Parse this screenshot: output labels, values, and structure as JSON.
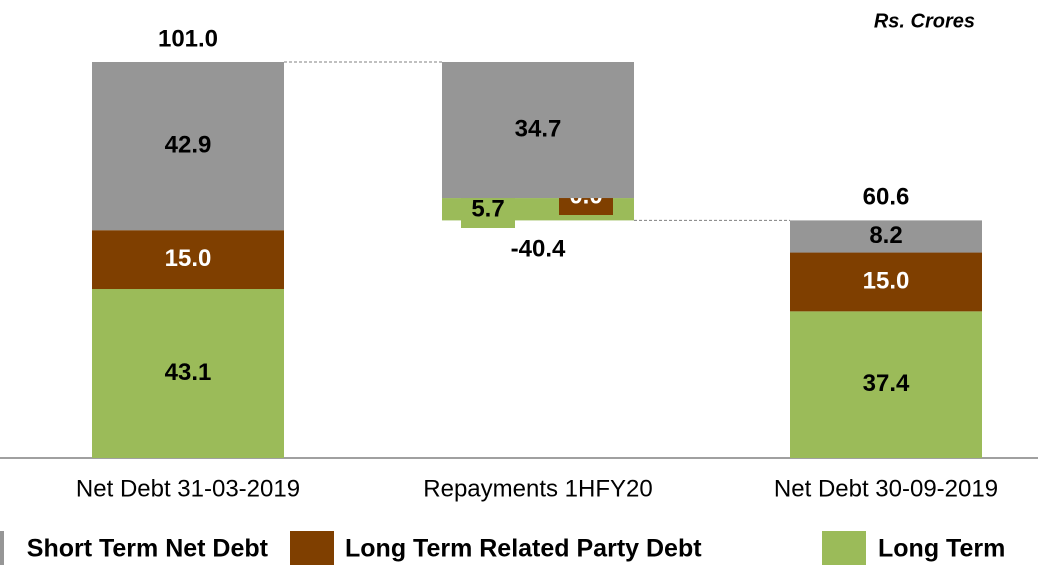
{
  "chart_data": {
    "type": "waterfall",
    "unit": "Rs. Crores",
    "categories": [
      "Net Debt 31-03-2019",
      "Repayments 1HFY20",
      "Net Debt 30-09-2019"
    ],
    "totals": [
      101.0,
      -40.4,
      60.6
    ],
    "total_labels": [
      "101.0",
      "-40.4",
      "60.6"
    ],
    "series": [
      {
        "name": "Long Term",
        "color": "#9bbb59",
        "values": [
          43.1,
          5.7,
          37.4
        ],
        "value_labels": [
          "43.1",
          "5.7",
          "37.4"
        ]
      },
      {
        "name": "Long Term Related Party Debt",
        "color": "#7f3f00",
        "values": [
          15.0,
          0.0,
          15.0
        ],
        "value_labels": [
          "15.0",
          "0.0",
          "15.0"
        ]
      },
      {
        "name": "Short Term Net Debt",
        "color": "#969696",
        "values": [
          42.9,
          34.7,
          8.2
        ],
        "value_labels": [
          "42.9",
          "34.7",
          "8.2"
        ]
      }
    ]
  }
}
